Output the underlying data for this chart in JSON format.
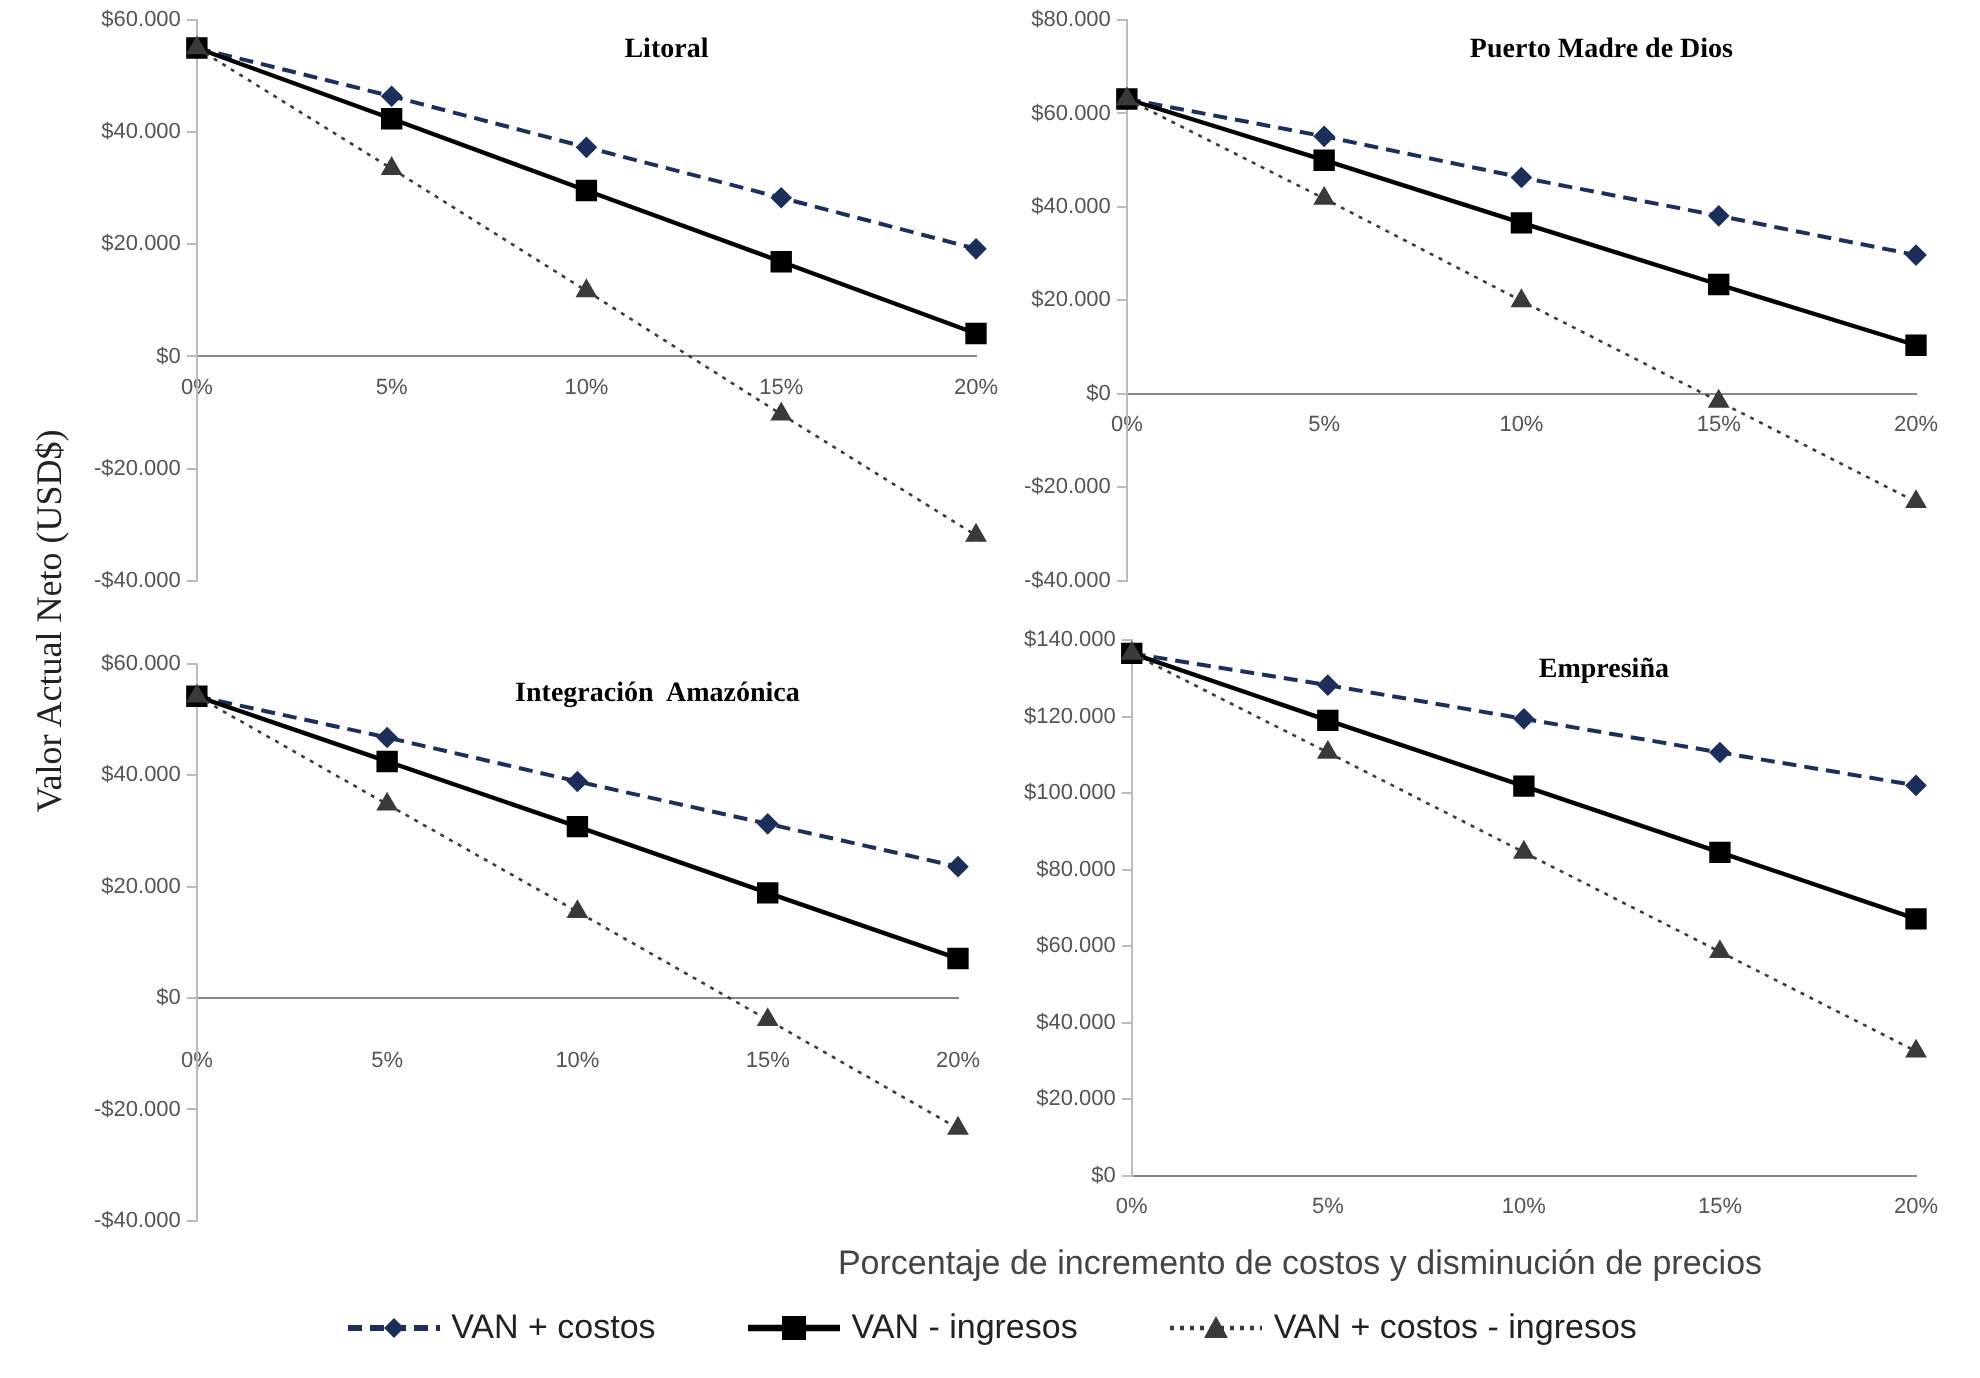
{
  "chart_data": [
    {
      "type": "line",
      "title": "Litoral",
      "ylabel": "Valor Actual Neto (USD$)",
      "categories": [
        "0%",
        "5%",
        "10%",
        "15%",
        "20%"
      ],
      "ylim": [
        -40000,
        60000
      ],
      "yticks": [
        {
          "value": -40000,
          "label": "-$40.000"
        },
        {
          "value": -20000,
          "label": "-$20.000"
        },
        {
          "value": 0,
          "label": "$0"
        },
        {
          "value": 20000,
          "label": "$20.000"
        },
        {
          "value": 40000,
          "label": "$40.000"
        },
        {
          "value": 60000,
          "label": "$60.000"
        }
      ],
      "grid": false,
      "legend": false,
      "series": [
        {
          "color": "#1c2e5a",
          "marker": "diamond",
          "line_style": "dashed",
          "values": [
            55000,
            46400,
            37300,
            28300,
            19200
          ]
        },
        {
          "color": "#000000",
          "marker": "square",
          "line_style": "solid",
          "values": [
            55000,
            42400,
            29600,
            16900,
            4100
          ]
        },
        {
          "color": "#3a3a3a",
          "marker": "triangle",
          "line_style": "dotted",
          "values": [
            55000,
            33500,
            11700,
            -10300,
            -31900
          ]
        }
      ]
    },
    {
      "type": "line",
      "title": "Puerto Madre de Dios",
      "categories": [
        "0%",
        "5%",
        "10%",
        "15%",
        "20%"
      ],
      "ylim": [
        -40000,
        80000
      ],
      "yticks": [
        {
          "value": -40000,
          "label": "-$40.000"
        },
        {
          "value": -20000,
          "label": "-$20.000"
        },
        {
          "value": 0,
          "label": "$0"
        },
        {
          "value": 20000,
          "label": "$20.000"
        },
        {
          "value": 40000,
          "label": "$40.000"
        },
        {
          "value": 60000,
          "label": "$60.000"
        },
        {
          "value": 80000,
          "label": "$80.000"
        }
      ],
      "grid": false,
      "legend": false,
      "series": [
        {
          "color": "#1c2e5a",
          "marker": "diamond",
          "line_style": "dashed",
          "values": [
            63100,
            55100,
            46300,
            38100,
            29700
          ]
        },
        {
          "color": "#000000",
          "marker": "square",
          "line_style": "solid",
          "values": [
            63100,
            50000,
            36600,
            23400,
            10400
          ]
        },
        {
          "color": "#3a3a3a",
          "marker": "triangle",
          "line_style": "dotted",
          "values": [
            63100,
            41800,
            19900,
            -1600,
            -23100
          ]
        }
      ]
    },
    {
      "type": "line",
      "title": "Integración  Amazónica",
      "categories": [
        "0%",
        "5%",
        "10%",
        "15%",
        "20%"
      ],
      "ylim": [
        -40000,
        60000
      ],
      "yticks": [
        {
          "value": -40000,
          "label": "-$40.000"
        },
        {
          "value": -20000,
          "label": "-$20.000"
        },
        {
          "value": 0,
          "label": "$0"
        },
        {
          "value": 20000,
          "label": "$20.000"
        },
        {
          "value": 40000,
          "label": "$40.000"
        },
        {
          "value": 60000,
          "label": "$60.000"
        }
      ],
      "grid": false,
      "legend": false,
      "series": [
        {
          "color": "#1c2e5a",
          "marker": "diamond",
          "line_style": "dashed",
          "values": [
            54200,
            46800,
            38900,
            31300,
            23600
          ]
        },
        {
          "color": "#000000",
          "marker": "square",
          "line_style": "solid",
          "values": [
            54200,
            42500,
            30800,
            18900,
            7100
          ]
        },
        {
          "color": "#3a3a3a",
          "marker": "triangle",
          "line_style": "dotted",
          "values": [
            54200,
            34800,
            15500,
            -3900,
            -23400
          ]
        }
      ]
    },
    {
      "type": "line",
      "title": "Empresiña",
      "xlabel": "Porcentaje de incremento de costos y disminución de precios",
      "categories": [
        "0%",
        "5%",
        "10%",
        "15%",
        "20%"
      ],
      "ylim": [
        0,
        140000
      ],
      "yticks": [
        {
          "value": 0,
          "label": "$0"
        },
        {
          "value": 20000,
          "label": "$20.000"
        },
        {
          "value": 40000,
          "label": "$40.000"
        },
        {
          "value": 60000,
          "label": "$60.000"
        },
        {
          "value": 80000,
          "label": "$80.000"
        },
        {
          "value": 100000,
          "label": "$100.000"
        },
        {
          "value": 120000,
          "label": "$120.000"
        },
        {
          "value": 140000,
          "label": "$140.000"
        }
      ],
      "grid": false,
      "legend": "bottom",
      "series": [
        {
          "name": "VAN + costos",
          "color": "#1c2e5a",
          "marker": "diamond",
          "line_style": "dashed",
          "values": [
            136500,
            128200,
            119400,
            110600,
            102000
          ]
        },
        {
          "name": "VAN - ingresos",
          "color": "#000000",
          "marker": "square",
          "line_style": "solid",
          "values": [
            136500,
            119000,
            101800,
            84500,
            67100
          ]
        },
        {
          "name": "VAN + costos - ingresos",
          "color": "#3a3a3a",
          "marker": "triangle",
          "line_style": "dotted",
          "values": [
            136500,
            110600,
            84500,
            58500,
            32500
          ]
        }
      ]
    }
  ]
}
